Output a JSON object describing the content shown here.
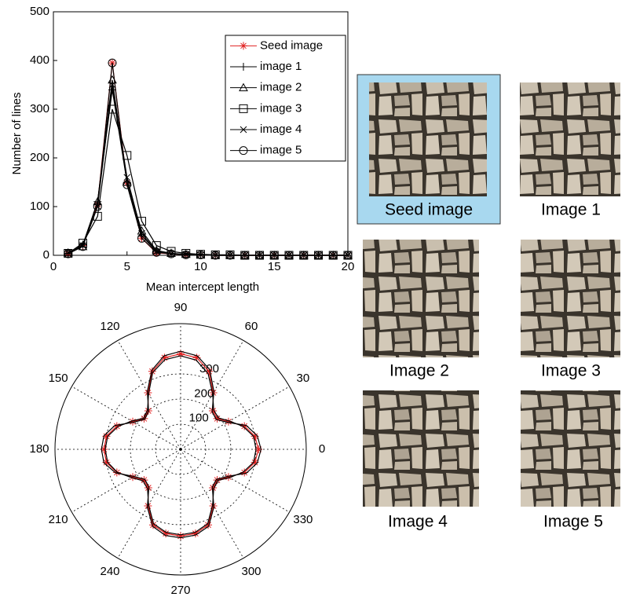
{
  "chart_data": [
    {
      "type": "line",
      "x_label": "Mean intercept length",
      "y_label": "Number of lines",
      "x": [
        1,
        2,
        3,
        4,
        5,
        6,
        7,
        8,
        9,
        10,
        11,
        12,
        13,
        14,
        15,
        16,
        17,
        18,
        19,
        20
      ],
      "series": [
        {
          "name": "Seed image",
          "color": "#e02020",
          "marker": "star",
          "values": [
            3,
            20,
            105,
            395,
            148,
            35,
            5,
            3,
            1,
            1,
            0,
            0,
            0,
            0,
            0,
            0,
            0,
            0,
            0,
            0
          ]
        },
        {
          "name": "image 1",
          "color": "#000000",
          "marker": "plus",
          "values": [
            4,
            22,
            110,
            340,
            150,
            40,
            8,
            3,
            2,
            1,
            0,
            0,
            0,
            0,
            0,
            0,
            0,
            0,
            0,
            0
          ]
        },
        {
          "name": "image 2",
          "color": "#000000",
          "marker": "triangle",
          "values": [
            5,
            18,
            110,
            360,
            150,
            50,
            10,
            4,
            2,
            1,
            0,
            0,
            0,
            0,
            0,
            0,
            0,
            0,
            0,
            0
          ]
        },
        {
          "name": "image 3",
          "color": "#000000",
          "marker": "square",
          "values": [
            4,
            25,
            80,
            300,
            205,
            70,
            20,
            8,
            4,
            2,
            1,
            1,
            0,
            0,
            0,
            0,
            0,
            0,
            0,
            0
          ]
        },
        {
          "name": "image 4",
          "color": "#000000",
          "marker": "x",
          "values": [
            5,
            20,
            100,
            350,
            160,
            45,
            8,
            3,
            2,
            1,
            0,
            0,
            0,
            0,
            0,
            0,
            0,
            0,
            0,
            0
          ]
        },
        {
          "name": "image 5",
          "color": "#000000",
          "marker": "circle",
          "values": [
            3,
            18,
            100,
            395,
            145,
            35,
            6,
            3,
            1,
            1,
            0,
            0,
            0,
            0,
            0,
            0,
            0,
            0,
            0,
            0
          ]
        }
      ],
      "xlim": [
        0,
        20
      ],
      "xticks": [
        0,
        5,
        10,
        15,
        20
      ],
      "ylim": [
        0,
        500
      ],
      "yticks": [
        0,
        100,
        200,
        300,
        400,
        500
      ],
      "legend": "upper-right"
    },
    {
      "type": "polar",
      "theta": [
        0,
        10,
        20,
        30,
        40,
        50,
        60,
        70,
        80,
        90,
        100,
        110,
        120,
        130,
        140,
        150,
        160,
        170,
        180,
        190,
        200,
        210,
        220,
        230,
        240,
        250,
        260,
        270,
        280,
        290,
        300,
        310,
        320,
        330,
        340,
        350
      ],
      "series": [
        {
          "color": "#e02020",
          "marker": "star",
          "values": [
            310,
            300,
            270,
            220,
            190,
            200,
            260,
            330,
            370,
            380,
            370,
            330,
            260,
            200,
            190,
            220,
            270,
            300,
            305,
            300,
            270,
            220,
            190,
            200,
            260,
            320,
            340,
            345,
            340,
            320,
            260,
            200,
            190,
            220,
            270,
            300
          ]
        },
        {
          "color": "#000000",
          "values": [
            300,
            295,
            265,
            225,
            195,
            205,
            255,
            320,
            360,
            372,
            362,
            325,
            255,
            205,
            192,
            225,
            265,
            295,
            300,
            295,
            268,
            225,
            195,
            205,
            255,
            315,
            335,
            340,
            335,
            315,
            255,
            205,
            193,
            225,
            265,
            295
          ]
        },
        {
          "color": "#000000",
          "values": [
            320,
            310,
            278,
            215,
            185,
            195,
            265,
            338,
            378,
            390,
            378,
            335,
            265,
            198,
            186,
            215,
            278,
            310,
            315,
            310,
            275,
            215,
            186,
            196,
            265,
            326,
            348,
            352,
            346,
            326,
            265,
            196,
            186,
            215,
            278,
            310
          ]
        }
      ],
      "rlim": [
        0,
        500
      ],
      "rticks": [
        100,
        200,
        300
      ],
      "thetaticks": [
        0,
        30,
        60,
        90,
        120,
        150,
        180,
        210,
        240,
        270,
        300,
        330
      ]
    }
  ],
  "images": [
    {
      "label": "Seed image"
    },
    {
      "label": "Image 1"
    },
    {
      "label": "Image 2"
    },
    {
      "label": "Image 3"
    },
    {
      "label": "Image 4"
    },
    {
      "label": "Image 5"
    }
  ]
}
